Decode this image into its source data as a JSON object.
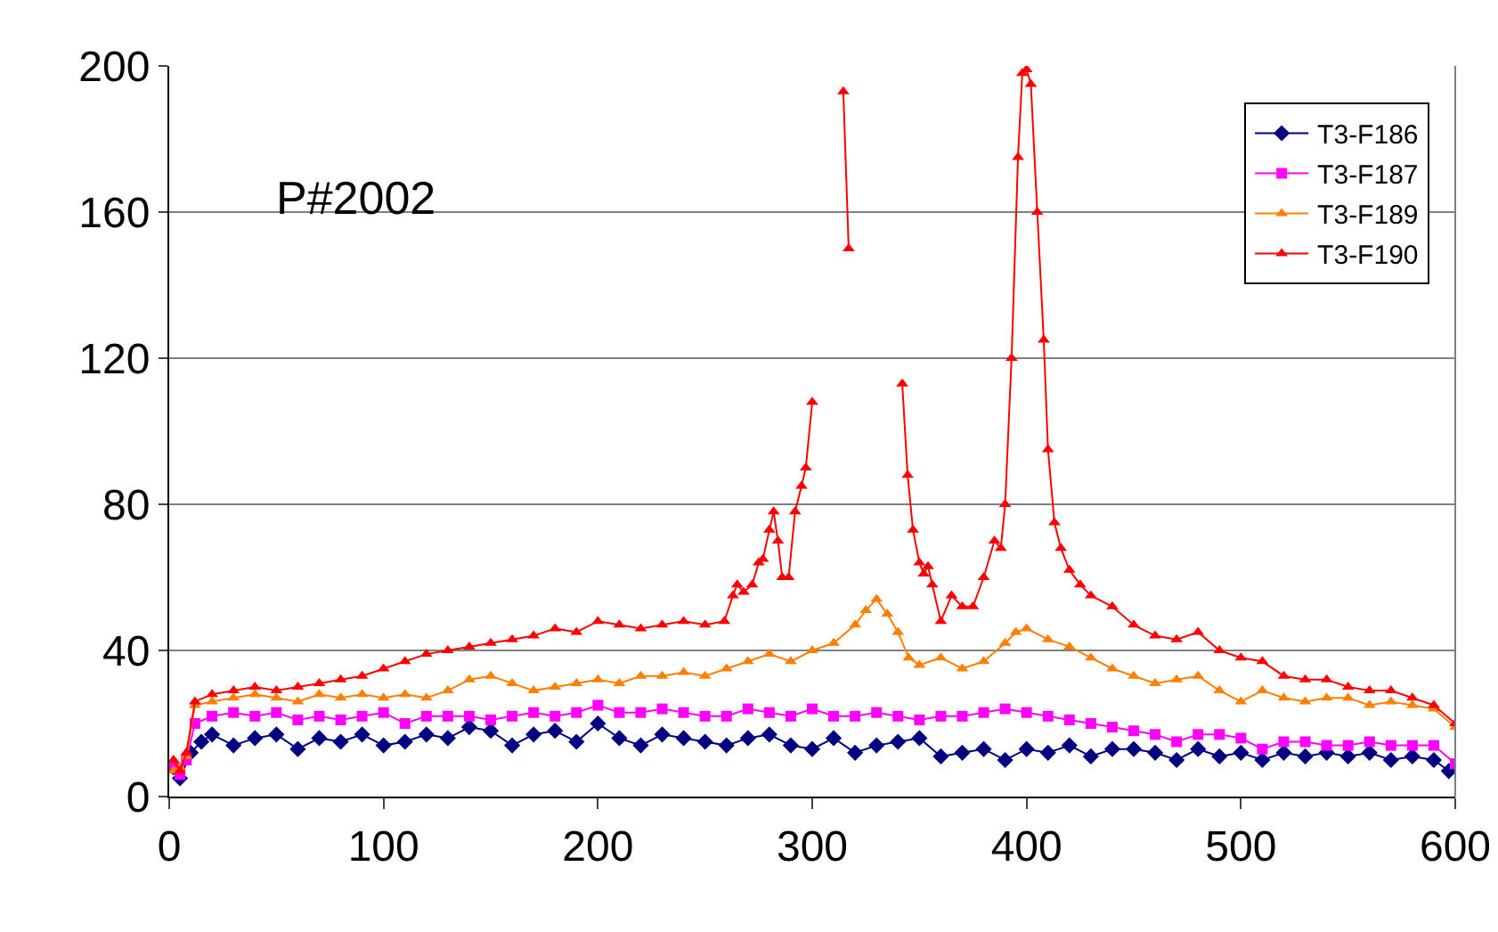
{
  "chart_data": {
    "type": "line",
    "annotations": [
      "P#2002"
    ],
    "xlim": [
      0,
      600
    ],
    "xticks": [
      0,
      100,
      200,
      300,
      400,
      500,
      600
    ],
    "ylim": [
      0,
      200
    ],
    "yticks": [
      0,
      40,
      80,
      120,
      160,
      200
    ],
    "grid": "y",
    "legend": "top right",
    "series": [
      {
        "name": "T3-F186",
        "color": "#000080",
        "marker": "diamond",
        "x": [
          2,
          5,
          10,
          15,
          20,
          30,
          40,
          50,
          60,
          70,
          80,
          90,
          100,
          110,
          120,
          130,
          140,
          150,
          160,
          170,
          180,
          190,
          200,
          210,
          220,
          230,
          240,
          250,
          260,
          270,
          280,
          290,
          300,
          310,
          320,
          330,
          340,
          350,
          360,
          370,
          380,
          390,
          400,
          410,
          420,
          430,
          440,
          450,
          460,
          470,
          480,
          490,
          500,
          510,
          520,
          530,
          540,
          550,
          560,
          570,
          580,
          590,
          597,
          600
        ],
        "values": [
          8,
          5,
          12,
          15,
          17,
          14,
          16,
          17,
          13,
          16,
          15,
          17,
          14,
          15,
          17,
          16,
          19,
          18,
          14,
          17,
          18,
          15,
          20,
          16,
          14,
          17,
          16,
          15,
          14,
          16,
          17,
          14,
          13,
          16,
          12,
          14,
          15,
          16,
          11,
          12,
          13,
          10,
          13,
          12,
          14,
          11,
          13,
          13,
          12,
          10,
          13,
          11,
          12,
          10,
          12,
          11,
          12,
          11,
          12,
          10,
          11,
          10,
          7,
          8
        ]
      },
      {
        "name": "T3-F187",
        "color": "#ff00ff",
        "marker": "square",
        "x": [
          2,
          5,
          8,
          12,
          20,
          30,
          40,
          50,
          60,
          70,
          80,
          90,
          100,
          110,
          120,
          130,
          140,
          150,
          160,
          170,
          180,
          190,
          200,
          210,
          220,
          230,
          240,
          250,
          260,
          270,
          280,
          290,
          300,
          310,
          320,
          330,
          340,
          350,
          360,
          370,
          380,
          390,
          400,
          410,
          420,
          430,
          440,
          450,
          460,
          470,
          480,
          490,
          500,
          510,
          520,
          530,
          540,
          550,
          560,
          570,
          580,
          590,
          600
        ],
        "values": [
          8,
          6,
          10,
          20,
          22,
          23,
          22,
          23,
          21,
          22,
          21,
          22,
          23,
          20,
          22,
          22,
          22,
          21,
          22,
          23,
          22,
          23,
          25,
          23,
          23,
          24,
          23,
          22,
          22,
          24,
          23,
          22,
          24,
          22,
          22,
          23,
          22,
          21,
          22,
          22,
          23,
          24,
          23,
          22,
          21,
          20,
          19,
          18,
          17,
          15,
          17,
          17,
          16,
          13,
          15,
          15,
          14,
          14,
          15,
          14,
          14,
          14,
          9
        ]
      },
      {
        "name": "T3-F189",
        "color": "#ff7f00",
        "marker": "triangle",
        "x": [
          2,
          5,
          8,
          12,
          20,
          30,
          40,
          50,
          60,
          70,
          80,
          90,
          100,
          110,
          120,
          130,
          140,
          150,
          160,
          170,
          180,
          190,
          200,
          210,
          220,
          230,
          240,
          250,
          260,
          270,
          280,
          290,
          300,
          310,
          320,
          325,
          330,
          335,
          340,
          345,
          350,
          360,
          370,
          380,
          390,
          395,
          400,
          410,
          420,
          430,
          440,
          450,
          460,
          470,
          480,
          490,
          500,
          510,
          520,
          530,
          540,
          550,
          560,
          570,
          580,
          590,
          600
        ],
        "values": [
          7,
          8,
          11,
          25,
          26,
          27,
          28,
          27,
          26,
          28,
          27,
          28,
          27,
          28,
          27,
          29,
          32,
          33,
          31,
          29,
          30,
          31,
          32,
          31,
          33,
          33,
          34,
          33,
          35,
          37,
          39,
          37,
          40,
          42,
          47,
          51,
          54,
          50,
          45,
          38,
          36,
          38,
          35,
          37,
          42,
          45,
          46,
          43,
          41,
          38,
          35,
          33,
          31,
          32,
          33,
          29,
          26,
          29,
          27,
          26,
          27,
          27,
          25,
          26,
          25,
          24,
          19
        ]
      },
      {
        "name": "T3-F190",
        "color": "#ff0000",
        "marker": "triangle",
        "x": [
          2,
          5,
          8,
          12,
          20,
          30,
          40,
          50,
          60,
          70,
          80,
          90,
          100,
          110,
          120,
          130,
          140,
          150,
          160,
          170,
          180,
          190,
          200,
          210,
          220,
          230,
          240,
          250,
          259,
          263,
          265,
          268,
          272,
          275,
          277,
          280,
          282,
          284,
          286,
          289,
          292,
          295,
          297,
          300,
          307,
          314.5,
          317,
          320,
          330,
          342,
          344.5,
          347,
          350,
          352,
          354,
          356,
          360,
          365,
          370,
          375,
          380,
          385,
          388,
          390,
          393,
          396,
          398,
          400,
          402,
          405,
          408,
          410,
          413,
          416,
          420,
          425,
          430,
          440,
          450,
          460,
          470,
          480,
          490,
          500,
          510,
          520,
          530,
          540,
          550,
          560,
          570,
          580,
          590,
          600
        ],
        "values": [
          10,
          7,
          12,
          26,
          28,
          29,
          30,
          29,
          30,
          31,
          32,
          33,
          35,
          37,
          39,
          40,
          41,
          42,
          43,
          44,
          46,
          45,
          48,
          47,
          46,
          47,
          48,
          47,
          48,
          55,
          58,
          56,
          58,
          64,
          65,
          73,
          78,
          70,
          60,
          60,
          78,
          85,
          90,
          108,
          null,
          193,
          150,
          null,
          null,
          113,
          88,
          73,
          64,
          61,
          63,
          58,
          48,
          55,
          52,
          52,
          60,
          70,
          68,
          80,
          120,
          175,
          198,
          199,
          195,
          160,
          125,
          95,
          75,
          68,
          62,
          58,
          55,
          52,
          47,
          44,
          43,
          45,
          40,
          38,
          37,
          33,
          32,
          32,
          30,
          29,
          29,
          27,
          25,
          20
        ]
      }
    ]
  }
}
